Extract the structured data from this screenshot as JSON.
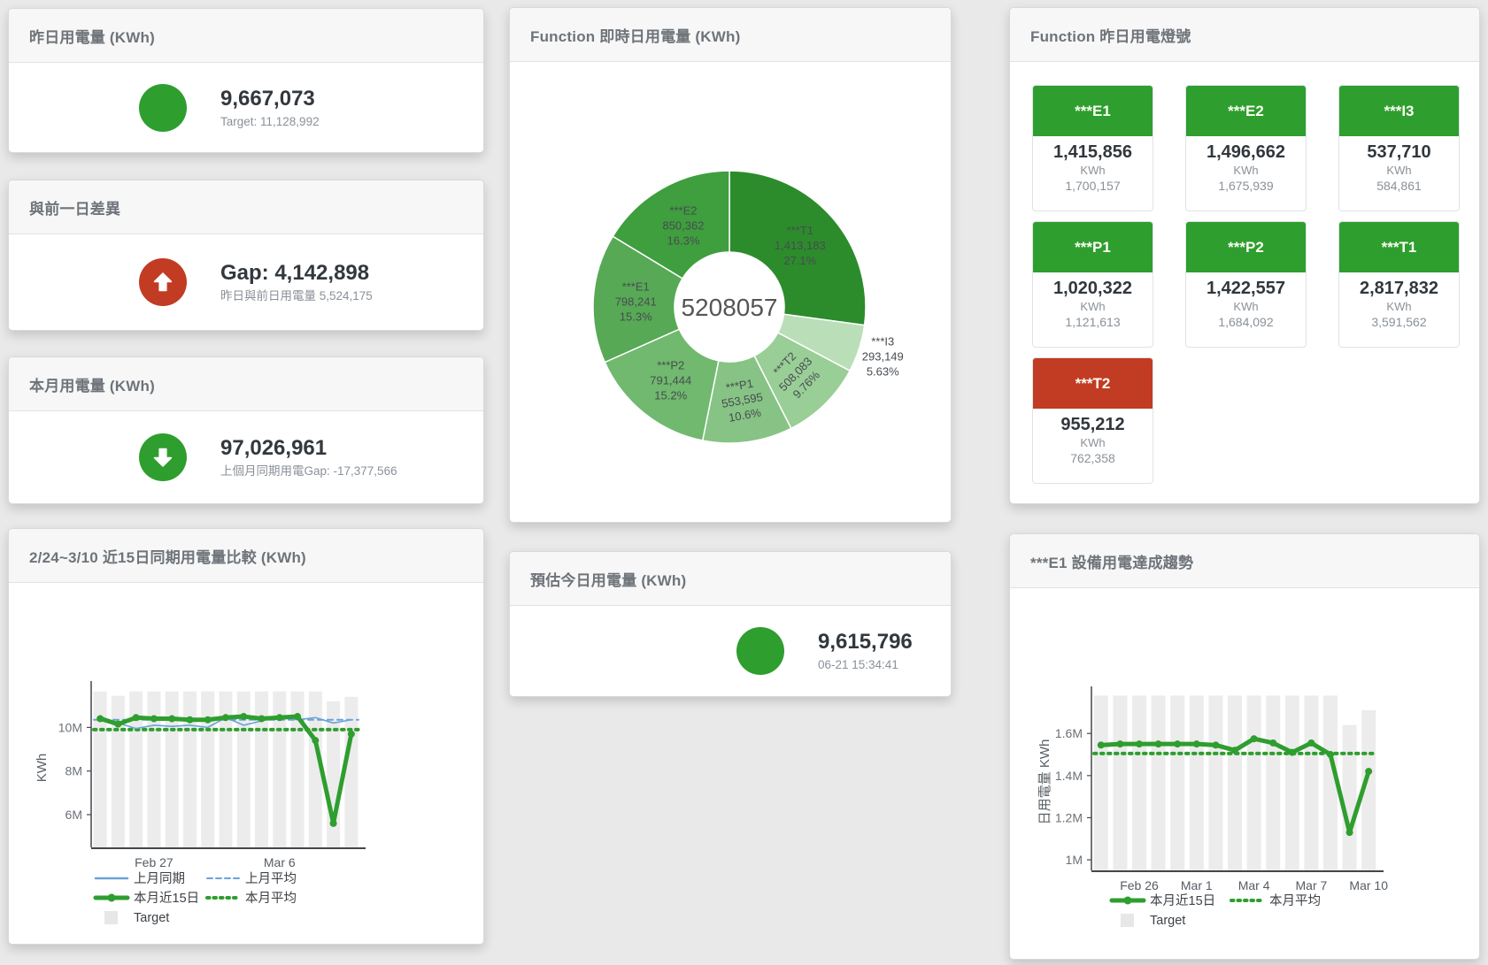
{
  "colors": {
    "green": "#2e9e2e",
    "red": "#c23b23",
    "blue": "#6aa3d8",
    "bar_gray": "#ececec"
  },
  "cards": {
    "yesterday": {
      "title": "昨日用電量 (KWh)",
      "value": "9,667,073",
      "subtitle": "Target: 11,128,992"
    },
    "gap_prev_day": {
      "title": "與前一日差異",
      "value": "Gap: 4,142,898",
      "subtitle": "昨日與前日用電量 5,524,175"
    },
    "month": {
      "title": "本月用電量 (KWh)",
      "value": "97,026,961",
      "subtitle": "上個月同期用電Gap: -17,377,566"
    },
    "today_estimate": {
      "title": "預估今日用電量 (KWh)",
      "value": "9,615,796",
      "subtitle": "06-21 15:34:41"
    }
  },
  "donut_card": {
    "title": "Function 即時日用電量 (KWh)"
  },
  "lights_card": {
    "title": "Function 昨日用電燈號",
    "tiles": [
      {
        "name": "***E1",
        "value": "1,415,856",
        "unit": "KWh",
        "target": "1,700,157",
        "status": "green"
      },
      {
        "name": "***E2",
        "value": "1,496,662",
        "unit": "KWh",
        "target": "1,675,939",
        "status": "green"
      },
      {
        "name": "***I3",
        "value": "537,710",
        "unit": "KWh",
        "target": "584,861",
        "status": "green"
      },
      {
        "name": "***P1",
        "value": "1,020,322",
        "unit": "KWh",
        "target": "1,121,613",
        "status": "green"
      },
      {
        "name": "***P2",
        "value": "1,422,557",
        "unit": "KWh",
        "target": "1,684,092",
        "status": "green"
      },
      {
        "name": "***T1",
        "value": "2,817,832",
        "unit": "KWh",
        "target": "3,591,562",
        "status": "green"
      },
      {
        "name": "***T2",
        "value": "955,212",
        "unit": "KWh",
        "target": "762,358",
        "status": "red"
      }
    ]
  },
  "trend_left": {
    "title": "2/24~3/10 近15日同期用電量比較 (KWh)"
  },
  "trend_right": {
    "title": "***E1 設備用電達成趨勢"
  },
  "chart_data": [
    {
      "type": "pie",
      "title": "Function 即時日用電量 (KWh)",
      "center_label": "5208057",
      "total": 5208057,
      "slices": [
        {
          "name": "***T1",
          "value": 1413183,
          "value_label": "1,413,183",
          "pct_label": "27.1%",
          "color": "#2c8c2c",
          "rotate": 0
        },
        {
          "name": "***I3",
          "value": 293149,
          "value_label": "293,149",
          "pct_label": "5.63%",
          "color": "#badfb8",
          "outside": true,
          "rotate": 0
        },
        {
          "name": "***T2",
          "value": 508083,
          "value_label": "508,083",
          "pct_label": "9.76%",
          "color": "#99ce97",
          "rotate": -46
        },
        {
          "name": "***P1",
          "value": 553595,
          "value_label": "553,595",
          "pct_label": "10.6%",
          "color": "#86c384",
          "rotate": -10
        },
        {
          "name": "***P2",
          "value": 791444,
          "value_label": "791,444",
          "pct_label": "15.2%",
          "color": "#70b96e",
          "rotate": 0
        },
        {
          "name": "***E1",
          "value": 798241,
          "value_label": "798,241",
          "pct_label": "15.3%",
          "color": "#57a955",
          "rotate": 0
        },
        {
          "name": "***E2",
          "value": 850362,
          "value_label": "850,362",
          "pct_label": "16.3%",
          "color": "#3f9e3e",
          "rotate": 0
        }
      ]
    },
    {
      "type": "line",
      "title": "2/24~3/10 近15日同期用電量比較 (KWh)",
      "ylabel": "KWh",
      "unit": "M KWh",
      "ylim": [
        4.5,
        11.8
      ],
      "yticks": [
        {
          "v": 6,
          "label": "6M"
        },
        {
          "v": 8,
          "label": "8M"
        },
        {
          "v": 10,
          "label": "10M"
        }
      ],
      "x_categories": [
        "2/24",
        "2/25",
        "2/26",
        "2/27",
        "2/28",
        "3/1",
        "3/2",
        "3/3",
        "3/4",
        "3/5",
        "3/6",
        "3/7",
        "3/8",
        "3/9",
        "3/10"
      ],
      "xticks": [
        {
          "i": 3,
          "label": "Feb 27"
        },
        {
          "i": 10,
          "label": "Mar 6"
        }
      ],
      "series": [
        {
          "name": "Target",
          "type": "bar",
          "color": "#ececec",
          "values": [
            11.65,
            11.45,
            11.65,
            11.65,
            11.65,
            11.65,
            11.65,
            11.65,
            11.65,
            11.65,
            11.65,
            11.65,
            11.65,
            11.2,
            11.4
          ]
        },
        {
          "name": "上月平均",
          "type": "const",
          "value": 10.35,
          "color": "#6aa3d8",
          "width": 2,
          "dash": "6 5"
        },
        {
          "name": "本月平均",
          "type": "const",
          "value": 9.9,
          "color": "#2e9e2e",
          "width": 4,
          "dash": "2.5 5.5"
        },
        {
          "name": "上月同期",
          "type": "line",
          "color": "#6aa3d8",
          "width": 1.6,
          "values": [
            10.5,
            10.2,
            9.95,
            10.1,
            10.05,
            10.1,
            10.0,
            10.45,
            10.1,
            10.3,
            10.5,
            10.35,
            10.45,
            10.2,
            10.35
          ]
        },
        {
          "name": "本月近15日",
          "type": "line",
          "color": "#2e9e2e",
          "width": 5,
          "markers": true,
          "values": [
            10.4,
            10.15,
            10.45,
            10.4,
            10.4,
            10.35,
            10.35,
            10.45,
            10.5,
            10.4,
            10.45,
            10.5,
            9.4,
            5.6,
            9.7
          ]
        }
      ],
      "legend": [
        [
          {
            "label": "上月同期",
            "swatch": "line",
            "color": "#6aa3d8"
          },
          {
            "label": "上月平均",
            "swatch": "dashed",
            "color": "#6aa3d8"
          }
        ],
        [
          {
            "label": "本月近15日",
            "swatch": "thick",
            "color": "#2e9e2e"
          },
          {
            "label": "本月平均",
            "swatch": "dotted",
            "color": "#2e9e2e"
          }
        ],
        [
          {
            "label": "Target",
            "swatch": "square",
            "color": "#e7e7e7"
          }
        ]
      ]
    },
    {
      "type": "line",
      "title": "***E1 設備用電達成趨勢",
      "ylabel": "日用電量 KWh",
      "unit": "M KWh",
      "ylim": [
        0.95,
        1.79
      ],
      "yticks": [
        {
          "v": 1,
          "label": "1M"
        },
        {
          "v": 1.2,
          "label": "1.2M"
        },
        {
          "v": 1.4,
          "label": "1.4M"
        },
        {
          "v": 1.6,
          "label": "1.6M"
        }
      ],
      "x_categories": [
        "2/24",
        "2/25",
        "2/26",
        "2/27",
        "2/28",
        "3/1",
        "3/2",
        "3/3",
        "3/4",
        "3/5",
        "3/6",
        "3/7",
        "3/8",
        "3/9",
        "3/10"
      ],
      "xticks": [
        {
          "i": 2,
          "label": "Feb 26"
        },
        {
          "i": 5,
          "label": "Mar 1"
        },
        {
          "i": 8,
          "label": "Mar 4"
        },
        {
          "i": 11,
          "label": "Mar 7"
        },
        {
          "i": 14,
          "label": "Mar 10"
        }
      ],
      "series": [
        {
          "name": "Target",
          "type": "bar",
          "color": "#ececec",
          "values": [
            1.78,
            1.78,
            1.78,
            1.78,
            1.78,
            1.78,
            1.78,
            1.78,
            1.78,
            1.78,
            1.78,
            1.78,
            1.78,
            1.64,
            1.71
          ]
        },
        {
          "name": "本月平均",
          "type": "const",
          "value": 1.505,
          "color": "#2e9e2e",
          "width": 4,
          "dash": "2.5 5.5"
        },
        {
          "name": "本月近15日",
          "type": "line",
          "color": "#2e9e2e",
          "width": 5,
          "markers": true,
          "values": [
            1.545,
            1.55,
            1.55,
            1.55,
            1.55,
            1.55,
            1.545,
            1.52,
            1.575,
            1.555,
            1.51,
            1.555,
            1.5,
            1.13,
            1.42
          ]
        }
      ],
      "legend": [
        [
          {
            "label": "本月近15日",
            "swatch": "thick",
            "color": "#2e9e2e"
          },
          {
            "label": "本月平均",
            "swatch": "dotted",
            "color": "#2e9e2e"
          }
        ],
        [
          {
            "label": "Target",
            "swatch": "square",
            "color": "#e7e7e7"
          }
        ]
      ]
    }
  ]
}
